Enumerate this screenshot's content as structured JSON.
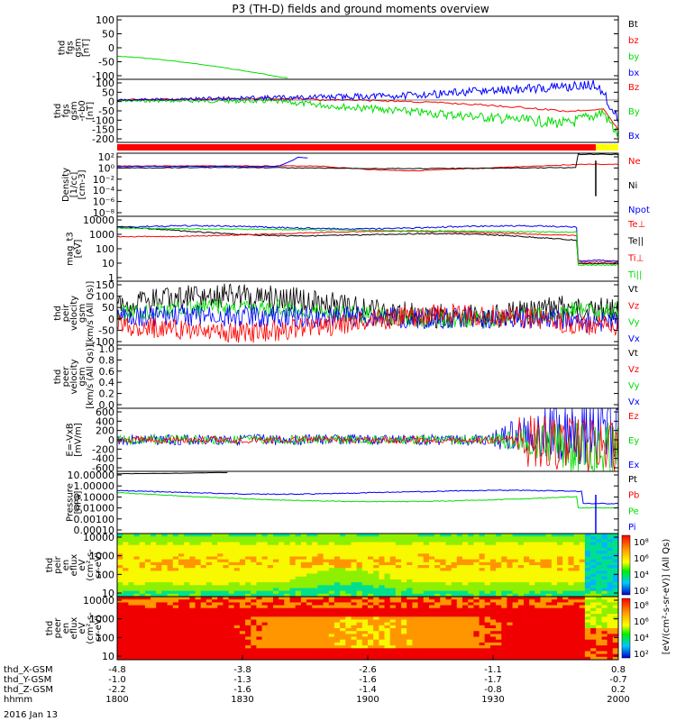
{
  "title": "P3 (TH-D) fields and ground moments overview",
  "date_label": "2016 Jan 13",
  "colors": {
    "black": "#000000",
    "red": "#ff0000",
    "green": "#00dd00",
    "blue": "#0000ff",
    "cyan": "#00b4ff"
  },
  "chart_data": [
    {
      "type": "line",
      "id": "fgs_gsm",
      "ylabel": [
        "thd",
        "fgs",
        "gsm",
        "[nT]"
      ],
      "yticks": [
        "100",
        "50",
        "0",
        "-50",
        "-100"
      ],
      "legend": [
        {
          "text": "Bt",
          "color": "black"
        },
        {
          "text": "bz",
          "color": "red"
        },
        {
          "text": "by",
          "color": "green"
        },
        {
          "text": "bx",
          "color": "blue"
        }
      ]
    },
    {
      "type": "line",
      "id": "fgs_gsm_r",
      "ylabel": [
        "thd",
        "fgs",
        "gsm",
        "-r-b0",
        "[nT]"
      ],
      "yticks": [
        "100",
        "50",
        "0",
        "-50",
        "-100",
        "-150",
        "-200"
      ],
      "legend": [
        {
          "text": "Bz",
          "color": "red"
        },
        {
          "text": "By",
          "color": "green"
        },
        {
          "text": "Bx",
          "color": "blue"
        }
      ]
    },
    {
      "type": "line",
      "id": "density",
      "ylabel": [
        "Density",
        "[1/cc]",
        "[cm-3]"
      ],
      "yticks": [
        "10²",
        "10⁰",
        "10⁻²",
        "10⁻⁴",
        "10⁻⁶",
        "10⁻⁸"
      ],
      "legend": [
        {
          "text": "Ne",
          "color": "red"
        },
        {
          "text": "Ni",
          "color": "black"
        },
        {
          "text": "Npot",
          "color": "blue"
        }
      ]
    },
    {
      "type": "line",
      "id": "temperature",
      "ylabel": [
        "mag_t3",
        "[eV]"
      ],
      "yticks": [
        "10000",
        "1000",
        "100",
        "10",
        "1"
      ],
      "legend": [
        {
          "text": "Te⊥",
          "color": "red"
        },
        {
          "text": "Te||",
          "color": "black"
        },
        {
          "text": "Ti⊥",
          "color": "red"
        },
        {
          "text": "Ti||",
          "color": "green"
        }
      ]
    },
    {
      "type": "line",
      "id": "peir_velocity",
      "ylabel": [
        "thd",
        "peir",
        "velocity",
        "gsm",
        "[km/s (All Qs)]"
      ],
      "yticks": [
        "150",
        "100",
        "50",
        "0",
        "-50",
        "-100"
      ],
      "legend": [
        {
          "text": "Vt",
          "color": "black"
        },
        {
          "text": "Vz",
          "color": "red"
        },
        {
          "text": "Vy",
          "color": "green"
        },
        {
          "text": "Vx",
          "color": "blue"
        }
      ]
    },
    {
      "type": "line",
      "id": "peer_velocity",
      "ylabel": [
        "thd",
        "peer",
        "velocity",
        "gsm",
        "[km/s (All Qs)]"
      ],
      "yticks": [
        "1.0",
        "0.8",
        "0.6",
        "0.4",
        "0.2",
        "0.0"
      ],
      "legend": [
        {
          "text": "Vt",
          "color": "black"
        },
        {
          "text": "Vz",
          "color": "red"
        },
        {
          "text": "Vy",
          "color": "green"
        },
        {
          "text": "Vx",
          "color": "blue"
        }
      ]
    },
    {
      "type": "line",
      "id": "efield",
      "ylabel": [
        "E=-VxB",
        "[mV/m]"
      ],
      "yticks": [
        "600",
        "400",
        "200",
        "0",
        "-200",
        "-400",
        "-600"
      ],
      "legend": [
        {
          "text": "Ez",
          "color": "red"
        },
        {
          "text": "Ey",
          "color": "green"
        },
        {
          "text": "Ex",
          "color": "blue"
        }
      ]
    },
    {
      "type": "line",
      "id": "pressure",
      "ylabel": [
        "Pressure",
        "[nPa]"
      ],
      "yticks": [
        "10.00000",
        "1.00000",
        "0.10000",
        "0.01000",
        "0.00100",
        "0.00010"
      ],
      "legend": [
        {
          "text": "Pt",
          "color": "black"
        },
        {
          "text": "Pb",
          "color": "red"
        },
        {
          "text": "Pe",
          "color": "green"
        },
        {
          "text": "Pi",
          "color": "blue"
        }
      ]
    },
    {
      "type": "heatmap",
      "id": "peir_eflux",
      "ylabel": [
        "thd",
        "peir",
        "en",
        "eflux",
        "eV",
        "(cm²-s-",
        "sr-eV)"
      ],
      "yticks": [
        "10000",
        "1000",
        "100",
        "10"
      ],
      "colorbar": [
        "10⁸",
        "10⁶",
        "10⁴",
        "10²"
      ]
    },
    {
      "type": "heatmap",
      "id": "peer_eflux",
      "ylabel": [
        "thd",
        "peer",
        "en",
        "eflux",
        "eV",
        "(cm²-s-",
        "sr-eV)"
      ],
      "yticks": [
        "10000",
        "1000",
        "100",
        "10"
      ],
      "colorbar": [
        "10⁸",
        "10⁶",
        "10⁴",
        "10²"
      ]
    }
  ],
  "colorbar_title": "[eV/(cm²-s-sr-eV)] (All Qs)",
  "x_axis": {
    "rows": [
      {
        "label": "thd_X-GSM",
        "values": [
          "-4.8",
          "-3.8",
          "-2.6",
          "-1.1",
          "0.8"
        ]
      },
      {
        "label": "thd_Y-GSM",
        "values": [
          "-1.0",
          "-1.3",
          "-1.6",
          "-1.7",
          "-0.7"
        ]
      },
      {
        "label": "thd_Z-GSM",
        "values": [
          "-2.2",
          "-1.6",
          "-1.4",
          "-0.8",
          "0.2"
        ]
      },
      {
        "label": "hhmm",
        "values": [
          "1800",
          "1830",
          "1900",
          "1930",
          "2000"
        ]
      }
    ]
  }
}
